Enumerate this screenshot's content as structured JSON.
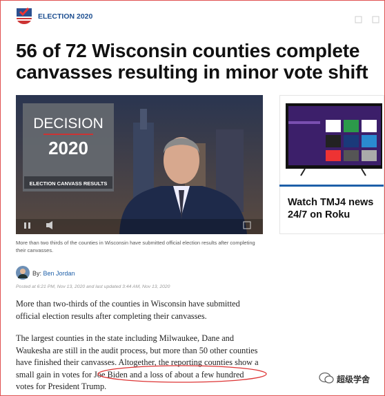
{
  "header": {
    "section": "ELECTION 2020"
  },
  "article": {
    "headline": "56 of 72 Wisconsin counties complete canvasses resulting in minor vote shift",
    "video": {
      "title_line1": "DECISION",
      "title_line2": "2020",
      "banner": "ELECTION CANVASS RESULTS"
    },
    "caption": "More than two thirds of the counties in Wisconsin have submitted official election results after completing their canvasses.",
    "byline": {
      "prefix": "By:",
      "author": "Ben Jordan"
    },
    "posted": "Posted at 6:21 PM, Nov 13, 2020 and last updated 3:44 AM, Nov 13, 2020",
    "paragraphs": [
      "More than two-thirds of the counties in Wisconsin have submitted official election results after completing their canvasses.",
      "The largest counties in the state including Milwaukee, Dane and Waukesha are still in the audit process, but more than 50 other counties have finished their canvasses. Altogether, the reporting counties show a small gain in votes for Joe Biden and a loss of about a few hundred votes for President Trump."
    ]
  },
  "sidebar": {
    "promo": "Watch TMJ4 news 24/7 on Roku"
  },
  "watermark": "超级学舍"
}
